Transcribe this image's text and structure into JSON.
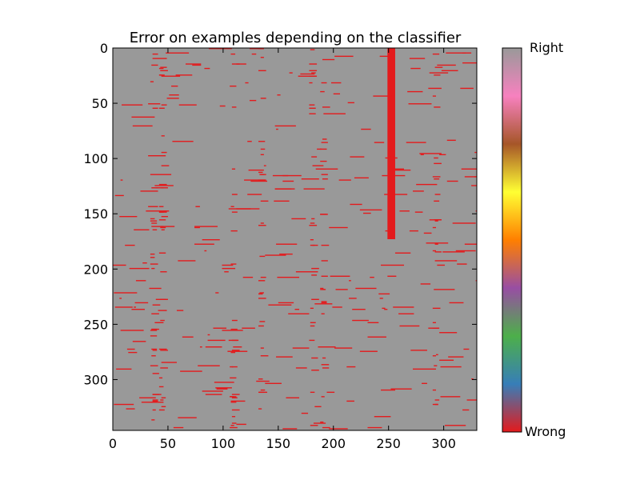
{
  "chart_data": {
    "type": "heatmap",
    "title": "Error on examples depending on the classifier",
    "xlabel": "",
    "ylabel": "",
    "n_columns": 330,
    "n_rows": 346,
    "xlim": [
      0,
      330
    ],
    "ylim": [
      346,
      0
    ],
    "x_ticks": [
      0,
      50,
      100,
      150,
      200,
      250,
      300
    ],
    "y_ticks": [
      0,
      50,
      100,
      150,
      200,
      250,
      300
    ],
    "x_tick_labels": [
      "0",
      "50",
      "100",
      "150",
      "200",
      "250",
      "300"
    ],
    "y_tick_labels": [
      "0",
      "50",
      "100",
      "150",
      "200",
      "250",
      "300"
    ],
    "grid": false,
    "colormap": "Set1",
    "value_levels": {
      "wrong": 0,
      "right": 1
    },
    "colorbar": {
      "top_label": "Right",
      "bottom_label": "Wrong",
      "stops": [
        "#e41a1c",
        "#377eb8",
        "#4daf4a",
        "#984ea3",
        "#ff7f00",
        "#ffff33",
        "#a65628",
        "#f781bf",
        "#999999"
      ]
    },
    "cell_colors": {
      "right": "#999999",
      "wrong": "#e41a1c"
    },
    "background_value": "right",
    "solid_wrong_regions": [
      {
        "columns": [
          249,
          256
        ],
        "rows": [
          0,
          173
        ]
      }
    ],
    "dense_wrong_columns": [
      36,
      44,
      108,
      134,
      180,
      190,
      292
    ],
    "scattered_wrong_fraction": 0.12
  }
}
